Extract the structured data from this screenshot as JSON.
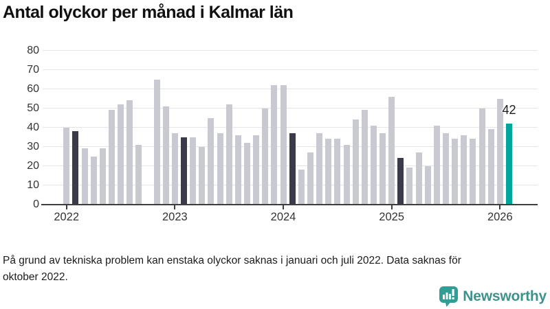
{
  "title": "Antal olyckor per månad i Kalmar län",
  "footnote": "På grund av tekniska problem kan enstaka olyckor saknas i januari och juli 2022. Data saknas för oktober 2022.",
  "logo": {
    "text": "Newsworthy",
    "icon": "newsworthy-speech-bubble-bar-chart-icon"
  },
  "colors": {
    "bar_default": "#c9c9d1",
    "bar_highlight_dark": "#3a3a48",
    "bar_accent_teal": "#00a69c",
    "gridline": "#e4e4e7",
    "axis": "#3d3d3d",
    "logo_icon": "#2f9f96",
    "logo_text": "#3f918c"
  },
  "chart_data": {
    "type": "bar",
    "title": "Antal olyckor per månad i Kalmar län",
    "xlabel": "",
    "ylabel": "",
    "ylim": [
      0,
      80
    ],
    "y_ticks": [
      0,
      10,
      20,
      30,
      40,
      50,
      60,
      70,
      80
    ],
    "x_ticks": [
      "2022",
      "2023",
      "2024",
      "2025",
      "2026"
    ],
    "grid": true,
    "legend": false,
    "annotation": {
      "text": "42",
      "month_index": 49
    },
    "points": [
      {
        "month": "2022-01",
        "value": 40,
        "color": "default"
      },
      {
        "month": "2022-02",
        "value": 38,
        "color": "highlight"
      },
      {
        "month": "2022-03",
        "value": 29,
        "color": "default"
      },
      {
        "month": "2022-04",
        "value": 25,
        "color": "default"
      },
      {
        "month": "2022-05",
        "value": 29,
        "color": "default"
      },
      {
        "month": "2022-06",
        "value": 49,
        "color": "default"
      },
      {
        "month": "2022-07",
        "value": 52,
        "color": "default"
      },
      {
        "month": "2022-08",
        "value": 54,
        "color": "default"
      },
      {
        "month": "2022-09",
        "value": 31,
        "color": "default"
      },
      {
        "month": "2022-10",
        "value": null,
        "color": "default"
      },
      {
        "month": "2022-11",
        "value": 65,
        "color": "default"
      },
      {
        "month": "2022-12",
        "value": 51,
        "color": "default"
      },
      {
        "month": "2023-01",
        "value": 37,
        "color": "default"
      },
      {
        "month": "2023-02",
        "value": 35,
        "color": "highlight"
      },
      {
        "month": "2023-03",
        "value": 35,
        "color": "default"
      },
      {
        "month": "2023-04",
        "value": 30,
        "color": "default"
      },
      {
        "month": "2023-05",
        "value": 45,
        "color": "default"
      },
      {
        "month": "2023-06",
        "value": 37,
        "color": "default"
      },
      {
        "month": "2023-07",
        "value": 52,
        "color": "default"
      },
      {
        "month": "2023-08",
        "value": 36,
        "color": "default"
      },
      {
        "month": "2023-09",
        "value": 32,
        "color": "default"
      },
      {
        "month": "2023-10",
        "value": 36,
        "color": "default"
      },
      {
        "month": "2023-11",
        "value": 50,
        "color": "default"
      },
      {
        "month": "2023-12",
        "value": 62,
        "color": "default"
      },
      {
        "month": "2024-01",
        "value": 62,
        "color": "default"
      },
      {
        "month": "2024-02",
        "value": 37,
        "color": "highlight"
      },
      {
        "month": "2024-03",
        "value": 18,
        "color": "default"
      },
      {
        "month": "2024-04",
        "value": 27,
        "color": "default"
      },
      {
        "month": "2024-05",
        "value": 37,
        "color": "default"
      },
      {
        "month": "2024-06",
        "value": 34,
        "color": "default"
      },
      {
        "month": "2024-07",
        "value": 34,
        "color": "default"
      },
      {
        "month": "2024-08",
        "value": 31,
        "color": "default"
      },
      {
        "month": "2024-09",
        "value": 44,
        "color": "default"
      },
      {
        "month": "2024-10",
        "value": 49,
        "color": "default"
      },
      {
        "month": "2024-11",
        "value": 41,
        "color": "default"
      },
      {
        "month": "2024-12",
        "value": 37,
        "color": "default"
      },
      {
        "month": "2025-01",
        "value": 56,
        "color": "default"
      },
      {
        "month": "2025-02",
        "value": 24,
        "color": "highlight"
      },
      {
        "month": "2025-03",
        "value": 19,
        "color": "default"
      },
      {
        "month": "2025-04",
        "value": 27,
        "color": "default"
      },
      {
        "month": "2025-05",
        "value": 20,
        "color": "default"
      },
      {
        "month": "2025-06",
        "value": 41,
        "color": "default"
      },
      {
        "month": "2025-07",
        "value": 37,
        "color": "default"
      },
      {
        "month": "2025-08",
        "value": 34,
        "color": "default"
      },
      {
        "month": "2025-09",
        "value": 36,
        "color": "default"
      },
      {
        "month": "2025-10",
        "value": 34,
        "color": "default"
      },
      {
        "month": "2025-11",
        "value": 50,
        "color": "default"
      },
      {
        "month": "2025-12",
        "value": 39,
        "color": "default"
      },
      {
        "month": "2026-01",
        "value": 55,
        "color": "default"
      },
      {
        "month": "2026-02",
        "value": 42,
        "color": "accent"
      }
    ]
  }
}
